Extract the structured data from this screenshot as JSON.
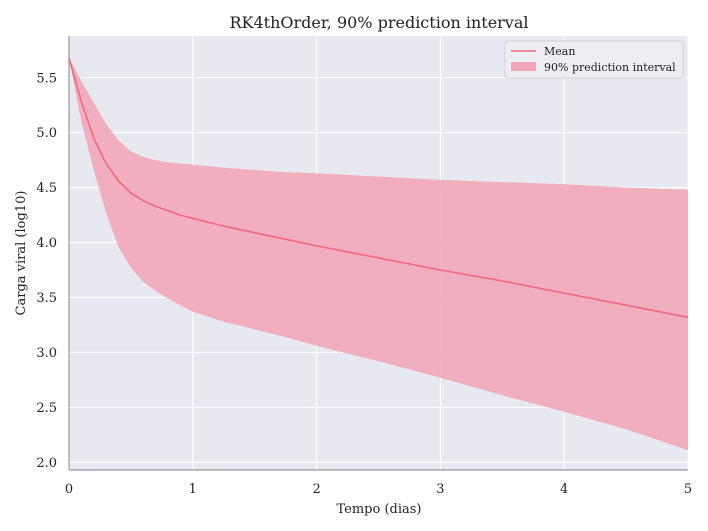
{
  "chart_data": {
    "type": "line",
    "title": "RK4thOrder, 90% prediction interval",
    "xlabel": "Tempo (dias)",
    "ylabel": "Carga viral (log10)",
    "xlim": [
      0,
      5
    ],
    "ylim": [
      1.93,
      5.88
    ],
    "xticks": [
      0,
      1,
      2,
      3,
      4,
      5
    ],
    "yticks": [
      2.0,
      2.5,
      3.0,
      3.5,
      4.0,
      4.5,
      5.0,
      5.5
    ],
    "grid": true,
    "legend_position": "top-right",
    "colors": {
      "background": "#e8e8f0",
      "grid": "#ffffff",
      "mean_line": "#f0687e",
      "interval_fill": "#f2a7b8"
    },
    "series": [
      {
        "name": "Mean",
        "kind": "line",
        "x": [
          0,
          0.1,
          0.2,
          0.3,
          0.4,
          0.5,
          0.6,
          0.7,
          0.8,
          0.9,
          1.0,
          1.25,
          1.5,
          1.75,
          2.0,
          2.5,
          3.0,
          3.5,
          4.0,
          4.5,
          5.0
        ],
        "y": [
          5.68,
          5.28,
          4.95,
          4.72,
          4.56,
          4.45,
          4.38,
          4.33,
          4.29,
          4.25,
          4.22,
          4.15,
          4.09,
          4.03,
          3.97,
          3.86,
          3.75,
          3.65,
          3.54,
          3.43,
          3.32
        ]
      },
      {
        "name": "90% prediction interval",
        "kind": "band",
        "x": [
          0,
          0.1,
          0.2,
          0.3,
          0.4,
          0.5,
          0.6,
          0.7,
          0.8,
          0.9,
          1.0,
          1.25,
          1.5,
          1.75,
          2.0,
          2.5,
          3.0,
          3.5,
          4.0,
          4.5,
          5.0
        ],
        "upper": [
          5.68,
          5.47,
          5.27,
          5.08,
          4.93,
          4.83,
          4.78,
          4.75,
          4.73,
          4.72,
          4.71,
          4.68,
          4.66,
          4.64,
          4.63,
          4.6,
          4.57,
          4.55,
          4.53,
          4.5,
          4.48
        ],
        "lower": [
          5.68,
          5.1,
          4.66,
          4.27,
          3.96,
          3.77,
          3.64,
          3.56,
          3.49,
          3.43,
          3.37,
          3.28,
          3.21,
          3.14,
          3.06,
          2.92,
          2.77,
          2.61,
          2.46,
          2.3,
          2.11
        ]
      }
    ]
  }
}
